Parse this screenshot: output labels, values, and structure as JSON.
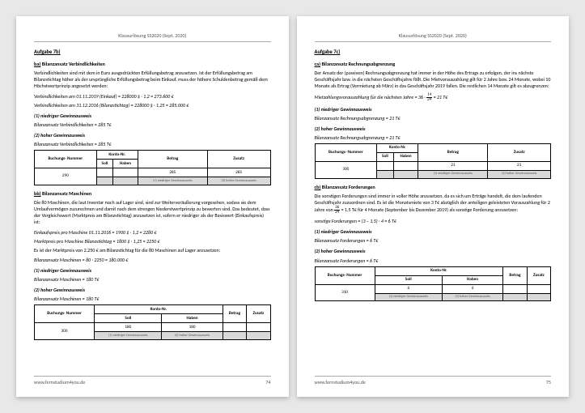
{
  "header": "Klausurlösung SS2020 (Sept. 2020)",
  "footer_site": "www.fernstudium4you.de",
  "left": {
    "page_no": "74",
    "task": "Aufgabe 7b)",
    "s1_title_u": "ba)",
    "s1_title_r": " Bilanzansatz Verbindlichkeiten",
    "s1_p1": "Verbindlichkeiten sind mit dem in Euro ausgedrückten Erfüllungsbetrag anzusetzen. Ist der Erfüllungsbetrag am Bilanzstichtag höher als der ursprüngliche Erfüllungsbetrag beim Einkauf, muss der höhere Schuldenbetrag gemäß dem Höchstwertprinzip angesetzt werden:",
    "s1_f1": "Verbindlichkeiten am 01.11.2019 (Einkauf) = 228000 $ · 1,2 = 273.600 €",
    "s1_f2": "Verbindlichkeiten am 31.12.2016 (Bilanzstichtag) = 228000 $ · 1,25 = 285.000 €",
    "s1_lo_h": "(1) niedriger Gewinnausweis",
    "s1_lo_f": "Bilanzansatz Verbindlichkeiten = 285 T€",
    "s1_hi_h": "(2) hoher Gewinnausweis",
    "s1_hi_f": "Bilanzansatz Verbindlichkeiten = 285 T€",
    "t1": {
      "cols": [
        "Buchungs-\nNummer",
        "Soll",
        "Haben",
        "Betrag",
        "Zusatz"
      ],
      "mid": "Konto-Nr.",
      "r1": [
        "290",
        "",
        "",
        "285",
        "285"
      ],
      "note": "(1) niedriger Gewinnausweis",
      "note2": "(2) hoher Gewinnausweis"
    },
    "s2_title_u": "bb)",
    "s2_title_r": " Bilanzansatz Maschinen",
    "s2_p1": "Die 80 Maschinen, die laut Inventar noch auf Lager sind, sind zur Weiterveräußerung vorgesehen, sodass sie dem Umlaufvermögen zuzurechnen und damit nach dem strengen Niederstwertprinzip zu bewerten sind. Das bedeutet, dass der Vergleichswert (Marktpreis am Bilanzstichtag) anzusetzen ist, sofern er niedriger als der Basiswert (Einkaufspreis) ist:",
    "s2_f1": "Einkaufspreis pro Maschine 01.11.2016 = 1900 $ · 1,2 = 2280 €",
    "s2_f2": "Marktpreis pro Maschine Bilanzstichtag = 1800 $ · 1,25 = 2250 €",
    "s2_p2": "Es ist der Marktpreis von 2.250 € am Bilanzstichtag für die 80 Maschinen auf Lager anzusetzen:",
    "s2_f3": "Bilanzansatz Maschinen = 80 · 2250 = 180.000 €",
    "s2_lo_h": "(1) niedriger Gewinnausweis",
    "s2_lo_f": "Bilanzansatz Maschinen = 180 T€",
    "s2_hi_h": "(2) hoher Gewinnausweis",
    "s2_hi_f": "Bilanzansatz Maschinen = 180 T€",
    "t2": {
      "r1": [
        "300",
        "180",
        "180",
        "",
        ""
      ]
    }
  },
  "right": {
    "page_no": "75",
    "task": "Aufgabe 7c)",
    "s1_title_u": "ca)",
    "s1_title_r": " Bilanzansatz Rechnungsabgrenzung",
    "s1_p1": "Der Ansatz der (passiven) Rechnungsabgrenzung hat immer in der Höhe des Ertrags zu erfolgen, der ins nächste Geschäftsjahr bzw. in die nächsten Geschäftsjahre fällt. Die Mietvorauszahlung gilt für 2 Jahre bzw. 24 Monate, wobei 10 Monate als Ertrag (Vermietung ab März) in das Geschäftsjahr 2019 fallen. Die restlichen 14 Monate gilt es abzugrenzen:",
    "s1_f1a": "Mietzahlungsvorauszahlung für die nächsten Jahre = 36 ·",
    "s1_f1_num": "14",
    "s1_f1_den": "24",
    "s1_f1b": " = 21 T€",
    "s1_lo_h": "(1) niedriger Gewinnausweis",
    "s1_lo_f": "Bilanzansatz Rechnungsabgrenzung = 21 T€",
    "s1_hi_h": "(2) hoher Gewinnausweis",
    "s1_hi_f": "Bilanzansatz Rechnungsabgrenzung = 21 T€",
    "t1": {
      "r1": [
        "300",
        "",
        "",
        "21",
        "21"
      ]
    },
    "s2_title_u": "cb)",
    "s2_title_r": " Bilanzansatz Forderungen",
    "s2_p1a": "Die sonstigen Forderungen sind immer in voller Höhe anzusetzen, da es sich um Erträge handelt, die dem laufenden Geschäftsjahr zuzuordnen sind. Es ist die Monatsmiete von 3 T€ abzüglich der anteiligen geleisteten Vorauszahlung für 2 Jahre von ",
    "s2_fr_num": "36",
    "s2_fr_den": "24",
    "s2_p1b": " = 1,5 T€ für 4 Monate (September bis Dezember 2019) als sonstige Forderung anzusetzen:",
    "s2_f1": "sonstige Forderungen = (3 − 1,5) · 4 = 6 T€",
    "s2_lo_h": "(1) niedriger Gewinnausweis",
    "s2_lo_f": "Bilanzansatz Forderungen = 6 T€",
    "s2_hi_h": "(2) hoher Gewinnausweis",
    "s2_hi_f": "Bilanzansatz Forderungen = 6 T€",
    "t2": {
      "r1": [
        "310",
        "6",
        "6",
        "",
        ""
      ]
    }
  }
}
